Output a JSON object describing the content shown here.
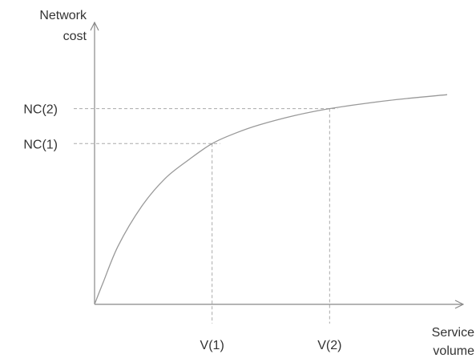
{
  "chart_data": {
    "type": "line",
    "title": "",
    "xlabel": [
      "Service",
      "volume"
    ],
    "ylabel": [
      "Network",
      "cost"
    ],
    "series": [
      {
        "x": [
          0,
          0.7,
          2,
          4,
          6,
          8,
          10,
          12,
          14,
          17,
          20,
          25,
          30
        ],
        "values": [
          0,
          0.9,
          2.5,
          4.2,
          5.4,
          6.2,
          6.9,
          7.35,
          7.7,
          8.1,
          8.4,
          8.75,
          9.0
        ]
      }
    ],
    "markers": {
      "x": [
        {
          "label": "V(1)",
          "value": 10
        },
        {
          "label": "V(2)",
          "value": 20
        }
      ],
      "y": [
        {
          "label": "NC(1)",
          "value": 6.9
        },
        {
          "label": "NC(2)",
          "value": 8.4
        }
      ]
    },
    "xlim": [
      0,
      30
    ],
    "ylim": [
      0,
      11
    ],
    "grid": false,
    "legend": "none",
    "colors": {
      "axis": "#888888",
      "curve": "#999999",
      "guide": "#aaaaaa",
      "text": "#333333"
    }
  }
}
